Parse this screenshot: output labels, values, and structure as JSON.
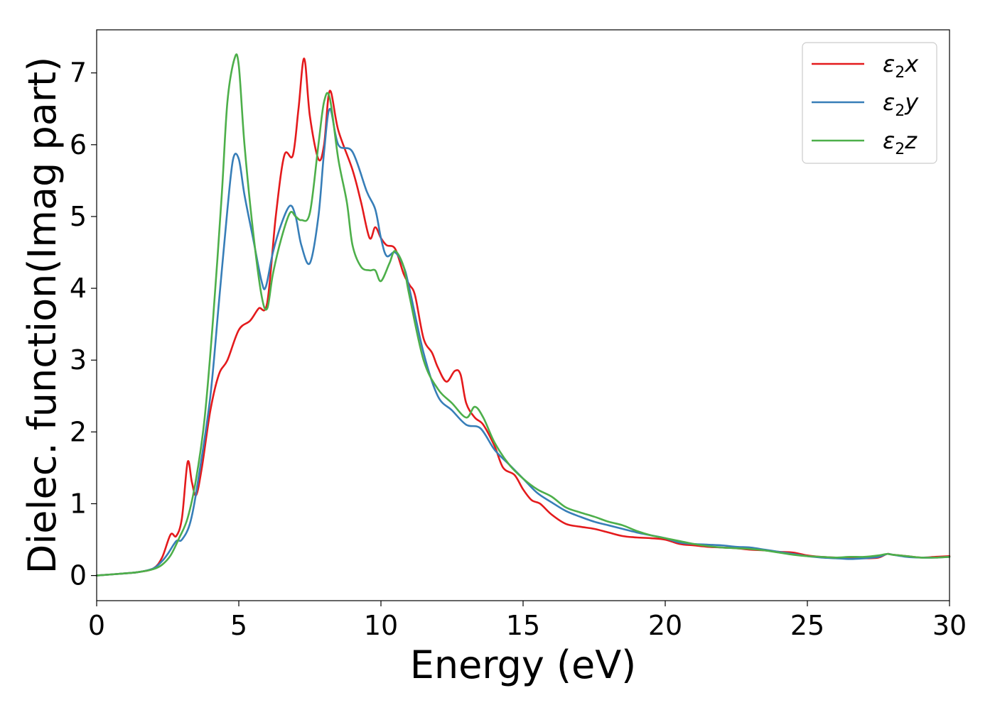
{
  "chart_data": {
    "type": "line",
    "title": "",
    "xlabel": "Energy (eV)",
    "ylabel": "Dielec. function(Imag part)",
    "xlim": [
      0,
      30
    ],
    "ylim": [
      -0.35,
      7.6
    ],
    "xticks": [
      0,
      5,
      10,
      15,
      20,
      25,
      30
    ],
    "yticks": [
      0,
      1,
      2,
      3,
      4,
      5,
      6,
      7
    ],
    "grid": false,
    "legend_position": "top-right",
    "series": [
      {
        "name": "ε2x",
        "legend_base": "ε",
        "legend_sub": "2",
        "legend_suffix": "x",
        "color": "#e41a1c",
        "x": [
          0,
          1,
          1.5,
          2,
          2.3,
          2.6,
          2.8,
          3.0,
          3.2,
          3.35,
          3.5,
          3.7,
          4.0,
          4.3,
          4.6,
          5.0,
          5.4,
          5.7,
          6.0,
          6.3,
          6.6,
          6.9,
          7.1,
          7.3,
          7.5,
          7.8,
          8.0,
          8.2,
          8.5,
          9.0,
          9.3,
          9.6,
          9.8,
          10.0,
          10.2,
          10.5,
          10.8,
          11.0,
          11.2,
          11.5,
          11.8,
          12.0,
          12.3,
          12.6,
          12.8,
          13.0,
          13.3,
          13.6,
          14.0,
          14.3,
          14.7,
          15.0,
          15.3,
          15.6,
          16.0,
          16.5,
          17.0,
          17.5,
          18.0,
          18.5,
          19.0,
          19.5,
          20.0,
          20.5,
          21.0,
          21.5,
          22.0,
          22.5,
          23.0,
          23.5,
          24.0,
          24.5,
          25.0,
          25.5,
          26.0,
          26.5,
          27.0,
          27.5,
          27.8,
          28.0,
          28.5,
          29.0,
          29.5,
          30.0
        ],
        "values": [
          0,
          0.03,
          0.05,
          0.1,
          0.25,
          0.57,
          0.55,
          0.8,
          1.58,
          1.3,
          1.12,
          1.5,
          2.3,
          2.8,
          3.0,
          3.42,
          3.55,
          3.72,
          3.8,
          5.0,
          5.85,
          5.85,
          6.5,
          7.2,
          6.4,
          5.8,
          6.0,
          6.75,
          6.2,
          5.65,
          5.2,
          4.7,
          4.85,
          4.7,
          4.6,
          4.55,
          4.2,
          4.05,
          3.9,
          3.3,
          3.1,
          2.9,
          2.7,
          2.85,
          2.8,
          2.4,
          2.2,
          2.1,
          1.8,
          1.5,
          1.4,
          1.2,
          1.05,
          1.0,
          0.85,
          0.72,
          0.68,
          0.65,
          0.6,
          0.55,
          0.53,
          0.52,
          0.5,
          0.44,
          0.42,
          0.4,
          0.39,
          0.38,
          0.36,
          0.35,
          0.33,
          0.32,
          0.28,
          0.26,
          0.25,
          0.25,
          0.24,
          0.25,
          0.3,
          0.29,
          0.27,
          0.25,
          0.26,
          0.27
        ]
      },
      {
        "name": "ε2y",
        "legend_base": "ε",
        "legend_sub": "2",
        "legend_suffix": "y",
        "color": "#377eb8",
        "x": [
          0,
          1,
          1.5,
          2,
          2.3,
          2.5,
          2.8,
          3.0,
          3.3,
          3.6,
          4.0,
          4.3,
          4.6,
          4.8,
          5.0,
          5.2,
          5.5,
          5.8,
          5.95,
          6.2,
          6.5,
          6.8,
          7.0,
          7.2,
          7.5,
          7.8,
          8.0,
          8.2,
          8.5,
          9.0,
          9.5,
          9.8,
          10.0,
          10.2,
          10.5,
          10.8,
          11.0,
          11.5,
          12.0,
          12.5,
          13.0,
          13.5,
          14.0,
          14.5,
          15.0,
          15.5,
          16.0,
          16.5,
          17.0,
          17.5,
          18.0,
          18.5,
          19.0,
          19.5,
          20.0,
          20.5,
          21.0,
          21.5,
          22.0,
          22.5,
          23.0,
          23.5,
          24.0,
          24.5,
          25.0,
          25.5,
          26.0,
          26.5,
          27.0,
          27.5,
          27.8,
          28.0,
          28.5,
          29.0,
          29.5,
          30.0
        ],
        "values": [
          0,
          0.03,
          0.05,
          0.1,
          0.2,
          0.3,
          0.48,
          0.5,
          0.75,
          1.4,
          2.5,
          3.8,
          5.1,
          5.8,
          5.8,
          5.3,
          4.7,
          4.1,
          4.02,
          4.5,
          4.9,
          5.15,
          5.0,
          4.6,
          4.35,
          5.0,
          5.9,
          6.5,
          6.0,
          5.9,
          5.35,
          5.1,
          4.7,
          4.45,
          4.5,
          4.3,
          4.0,
          3.1,
          2.5,
          2.3,
          2.1,
          2.05,
          1.75,
          1.55,
          1.35,
          1.15,
          1.02,
          0.9,
          0.82,
          0.75,
          0.7,
          0.65,
          0.6,
          0.56,
          0.52,
          0.46,
          0.44,
          0.43,
          0.42,
          0.4,
          0.39,
          0.36,
          0.33,
          0.3,
          0.27,
          0.25,
          0.24,
          0.23,
          0.24,
          0.26,
          0.3,
          0.29,
          0.26,
          0.25,
          0.25,
          0.26
        ]
      },
      {
        "name": "ε2z",
        "legend_base": "ε",
        "legend_sub": "2",
        "legend_suffix": "z",
        "color": "#4daf4a",
        "x": [
          0,
          1,
          1.5,
          2,
          2.3,
          2.6,
          2.9,
          3.2,
          3.5,
          3.8,
          4.1,
          4.4,
          4.6,
          4.85,
          5.0,
          5.2,
          5.5,
          5.8,
          6.0,
          6.2,
          6.5,
          6.8,
          7.0,
          7.2,
          7.5,
          7.8,
          8.0,
          8.2,
          8.5,
          8.8,
          9.0,
          9.3,
          9.6,
          9.8,
          10.0,
          10.3,
          10.5,
          10.8,
          11.0,
          11.5,
          12.0,
          12.5,
          13.0,
          13.3,
          13.6,
          14.0,
          14.5,
          15.0,
          15.5,
          16.0,
          16.5,
          17.0,
          17.5,
          18.0,
          18.5,
          19.0,
          19.5,
          20.0,
          20.5,
          21.0,
          21.5,
          22.0,
          22.5,
          23.0,
          23.5,
          24.0,
          24.5,
          25.0,
          25.5,
          26.0,
          26.5,
          27.0,
          27.5,
          27.8,
          28.0,
          28.5,
          29.0,
          29.5,
          30.0
        ],
        "values": [
          0,
          0.03,
          0.05,
          0.09,
          0.15,
          0.28,
          0.52,
          0.8,
          1.35,
          2.2,
          3.6,
          5.3,
          6.6,
          7.2,
          7.1,
          6.0,
          4.8,
          3.9,
          3.72,
          4.2,
          4.7,
          5.05,
          5.0,
          4.95,
          5.05,
          6.0,
          6.6,
          6.65,
          5.8,
          5.2,
          4.6,
          4.3,
          4.25,
          4.25,
          4.1,
          4.35,
          4.52,
          4.3,
          3.9,
          3.0,
          2.6,
          2.4,
          2.2,
          2.35,
          2.2,
          1.85,
          1.55,
          1.35,
          1.2,
          1.1,
          0.95,
          0.88,
          0.82,
          0.75,
          0.7,
          0.62,
          0.56,
          0.52,
          0.48,
          0.44,
          0.41,
          0.39,
          0.38,
          0.37,
          0.35,
          0.32,
          0.29,
          0.27,
          0.26,
          0.25,
          0.26,
          0.26,
          0.28,
          0.3,
          0.29,
          0.27,
          0.25,
          0.25,
          0.26
        ]
      }
    ]
  }
}
